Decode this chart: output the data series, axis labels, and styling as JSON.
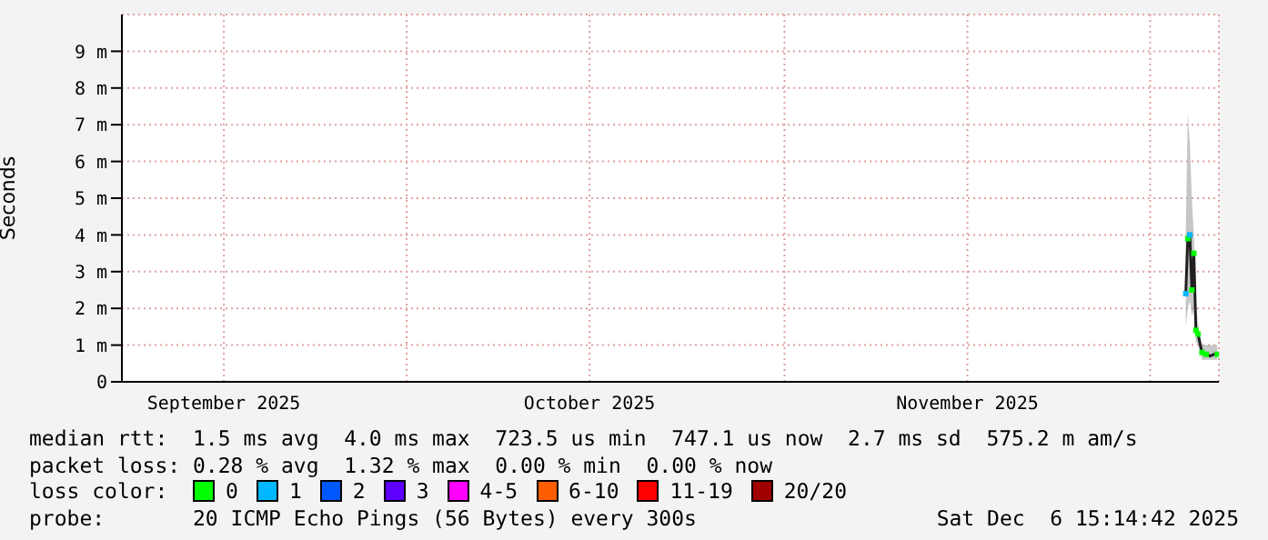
{
  "chart_data": {
    "type": "line",
    "ylabel": "Seconds",
    "x": [
      "2025-12-03T22:00",
      "2025-12-04T02:00",
      "2025-12-04T06:00",
      "2025-12-04T10:00",
      "2025-12-04T14:00",
      "2025-12-04T18:00",
      "2025-12-04T22:00",
      "2025-12-05T06:00",
      "2025-12-05T14:00",
      "2025-12-05T22:00",
      "2025-12-06T06:00",
      "2025-12-06T12:00"
    ],
    "series": [
      {
        "color": "#202020",
        "marker": "none",
        "values": [
          2.4,
          3.9,
          4.0,
          2.5,
          3.5,
          1.4,
          1.3,
          0.8,
          0.75,
          0.7,
          0.75,
          0.75
        ],
        "lower": [
          1.5,
          2.0,
          2.2,
          1.8,
          2.0,
          1.1,
          1.0,
          0.6,
          0.6,
          0.6,
          0.6,
          0.6
        ],
        "upper": [
          4.0,
          7.3,
          6.5,
          5.0,
          4.0,
          2.0,
          1.6,
          1.0,
          1.0,
          1.0,
          1.0,
          1.0
        ]
      },
      {
        "type": "scatter",
        "name": "0",
        "color": "#00ff00",
        "values": [
          null,
          3.9,
          null,
          2.5,
          3.5,
          1.4,
          1.3,
          0.8,
          0.75,
          null,
          null,
          0.75
        ]
      },
      {
        "type": "scatter",
        "name": "1",
        "color": "#00b8ff",
        "values": [
          2.4,
          null,
          4.0,
          null,
          null,
          null,
          null,
          null,
          null,
          null,
          null,
          null
        ]
      },
      {
        "type": "scatter",
        "name": "2",
        "color": "#0059ff",
        "values": [
          null,
          null,
          null,
          null,
          null,
          null,
          null,
          null,
          null,
          null,
          null,
          null
        ]
      },
      {
        "type": "scatter",
        "name": "3",
        "color": "#5e00ff",
        "values": [
          null,
          null,
          null,
          null,
          null,
          null,
          null,
          null,
          null,
          null,
          null,
          null
        ]
      },
      {
        "type": "scatter",
        "name": "4-5",
        "color": "#ff00ff",
        "values": [
          null,
          null,
          null,
          null,
          null,
          null,
          null,
          null,
          null,
          null,
          null,
          null
        ]
      },
      {
        "type": "scatter",
        "name": "6-10",
        "color": "#ff5e00",
        "values": [
          null,
          null,
          null,
          null,
          null,
          null,
          null,
          null,
          null,
          null,
          null,
          null
        ]
      },
      {
        "type": "scatter",
        "name": "11-19",
        "color": "#ff0000",
        "values": [
          null,
          null,
          null,
          null,
          null,
          null,
          null,
          null,
          null,
          null,
          null,
          null
        ]
      },
      {
        "type": "scatter",
        "name": "20/20",
        "color": "#a10000",
        "values": [
          null,
          null,
          null,
          null,
          null,
          null,
          null,
          null,
          null,
          null,
          null,
          null
        ]
      }
    ],
    "legend_title": "loss color:",
    "legend": "bottom",
    "marker": "square",
    "grid": true,
    "xlim": [
      "2025-09-07T15:14",
      "2025-12-06T15:14"
    ],
    "xticks": [
      {
        "value": "2025-09-16",
        "label": "September 2025"
      },
      {
        "value": "2025-10-01",
        "label": null
      },
      {
        "value": "2025-10-16",
        "label": "October 2025"
      },
      {
        "value": "2025-11-01",
        "label": null
      },
      {
        "value": "2025-11-16",
        "label": "November 2025"
      },
      {
        "value": "2025-12-01",
        "label": null
      }
    ],
    "ylim": [
      0,
      10
    ],
    "yticks": [
      0,
      {
        "value": 1,
        "label": "1 m"
      },
      {
        "value": 2,
        "label": "2 m"
      },
      {
        "value": 3,
        "label": "3 m"
      },
      {
        "value": 4,
        "label": "4 m"
      },
      {
        "value": 5,
        "label": "5 m"
      },
      {
        "value": 6,
        "label": "6 m"
      },
      {
        "value": 7,
        "label": "7 m"
      },
      {
        "value": 8,
        "label": "8 m"
      },
      {
        "value": 9,
        "label": "9 m"
      }
    ],
    "annotations": [
      "median rtt:  1.5 ms avg  4.0 ms max  723.5 us min  747.1 us now  2.7 ms sd  575.2 m am/s",
      "packet loss: 0.28 % avg  1.32 % max  0.00 % min  0.00 % now",
      "probe:       20 ICMP Echo Pings (56 Bytes) every 300s",
      "Sat Dec  6 15:14:42 2025"
    ]
  }
}
